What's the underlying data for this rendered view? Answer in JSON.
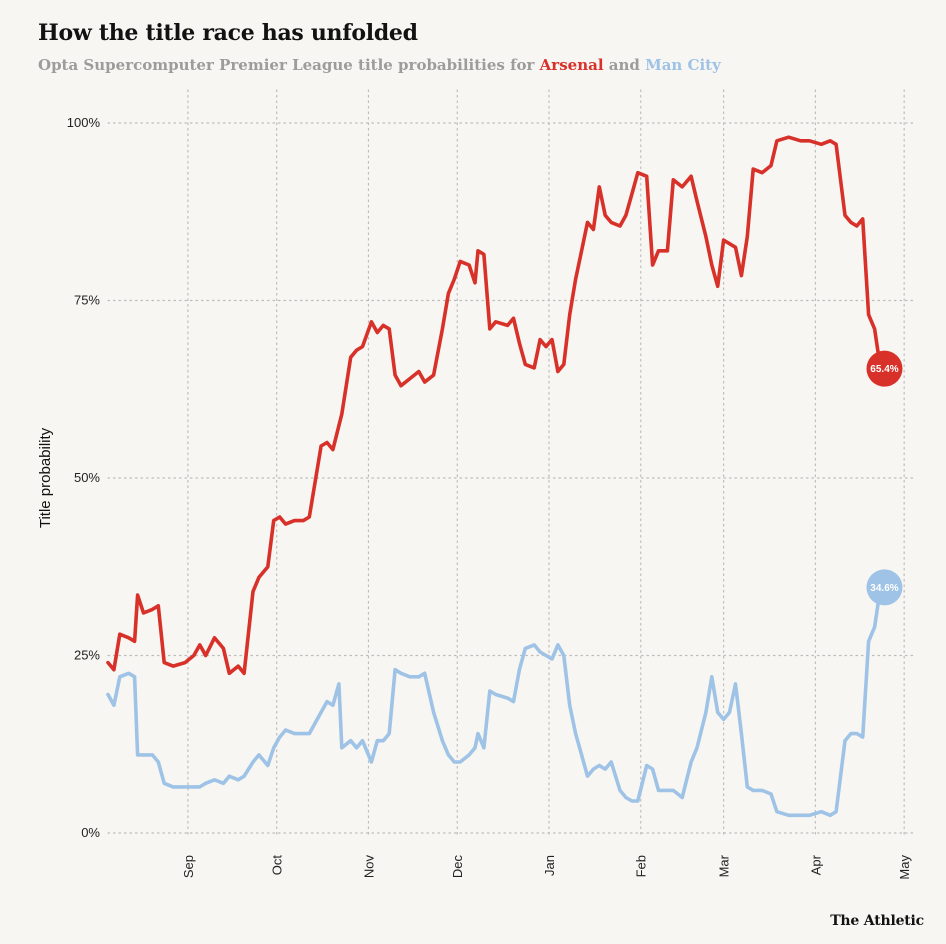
{
  "title": "How the title race has unfolded",
  "subtitle": {
    "prefix": "Opta Supercomputer Premier League title probabilities for ",
    "team1": "Arsenal",
    "joiner": " and ",
    "team2": "Man City"
  },
  "credit": "The Athletic",
  "colors": {
    "arsenal": "#d8312a",
    "mancity": "#9ec3e6",
    "grid": "#bdbdbd",
    "background": "#f7f6f2"
  },
  "chart_data": {
    "type": "line",
    "title": "How the title race has unfolded",
    "ylabel": "Title probability",
    "xlabel": "",
    "ylim": [
      0,
      100
    ],
    "yticks": [
      {
        "value": 0,
        "label": "0%"
      },
      {
        "value": 25,
        "label": "25%"
      },
      {
        "value": 50,
        "label": "50%"
      },
      {
        "value": 75,
        "label": "75%"
      },
      {
        "value": 100,
        "label": "100%"
      }
    ],
    "x_axis": "date (2022-23 season)",
    "xlim": [
      "2022-08-05",
      "2023-05-05"
    ],
    "xticks": [
      {
        "date": "2022-09-01",
        "label": "Sep"
      },
      {
        "date": "2022-10-01",
        "label": "Oct"
      },
      {
        "date": "2022-11-01",
        "label": "Nov"
      },
      {
        "date": "2022-12-01",
        "label": "Dec"
      },
      {
        "date": "2023-01-01",
        "label": "Jan"
      },
      {
        "date": "2023-02-01",
        "label": "Feb"
      },
      {
        "date": "2023-03-01",
        "label": "Mar"
      },
      {
        "date": "2023-04-01",
        "label": "Apr"
      },
      {
        "date": "2023-05-01",
        "label": "May"
      }
    ],
    "grid": true,
    "series": [
      {
        "name": "Arsenal",
        "end_label": "65.4%",
        "end_value": 65.4,
        "points": [
          [
            "2022-08-05",
            24
          ],
          [
            "2022-08-07",
            23
          ],
          [
            "2022-08-09",
            28
          ],
          [
            "2022-08-12",
            27.5
          ],
          [
            "2022-08-14",
            27
          ],
          [
            "2022-08-15",
            33.5
          ],
          [
            "2022-08-17",
            31
          ],
          [
            "2022-08-20",
            31.5
          ],
          [
            "2022-08-22",
            32
          ],
          [
            "2022-08-24",
            24
          ],
          [
            "2022-08-27",
            23.5
          ],
          [
            "2022-08-31",
            24
          ],
          [
            "2022-09-03",
            25
          ],
          [
            "2022-09-05",
            26.5
          ],
          [
            "2022-09-07",
            25
          ],
          [
            "2022-09-10",
            27.5
          ],
          [
            "2022-09-13",
            26
          ],
          [
            "2022-09-15",
            22.5
          ],
          [
            "2022-09-18",
            23.5
          ],
          [
            "2022-09-20",
            22.5
          ],
          [
            "2022-09-23",
            34
          ],
          [
            "2022-09-25",
            36
          ],
          [
            "2022-09-28",
            37.5
          ],
          [
            "2022-09-30",
            44
          ],
          [
            "2022-10-02",
            44.5
          ],
          [
            "2022-10-04",
            43.5
          ],
          [
            "2022-10-07",
            44
          ],
          [
            "2022-10-10",
            44
          ],
          [
            "2022-10-12",
            44.5
          ],
          [
            "2022-10-16",
            54.5
          ],
          [
            "2022-10-18",
            55
          ],
          [
            "2022-10-20",
            54
          ],
          [
            "2022-10-23",
            59
          ],
          [
            "2022-10-26",
            67
          ],
          [
            "2022-10-28",
            68
          ],
          [
            "2022-10-30",
            68.5
          ],
          [
            "2022-11-02",
            72
          ],
          [
            "2022-11-04",
            70.5
          ],
          [
            "2022-11-06",
            71.5
          ],
          [
            "2022-11-08",
            71
          ],
          [
            "2022-11-10",
            64.5
          ],
          [
            "2022-11-12",
            63
          ],
          [
            "2022-11-15",
            64
          ],
          [
            "2022-11-18",
            65
          ],
          [
            "2022-11-20",
            63.5
          ],
          [
            "2022-11-23",
            64.5
          ],
          [
            "2022-11-26",
            71
          ],
          [
            "2022-11-28",
            76
          ],
          [
            "2022-11-30",
            78
          ],
          [
            "2022-12-02",
            80.5
          ],
          [
            "2022-12-05",
            80
          ],
          [
            "2022-12-07",
            77.5
          ],
          [
            "2022-12-08",
            82
          ],
          [
            "2022-12-10",
            81.5
          ],
          [
            "2022-12-12",
            71
          ],
          [
            "2022-12-14",
            72
          ],
          [
            "2022-12-18",
            71.5
          ],
          [
            "2022-12-20",
            72.5
          ],
          [
            "2022-12-22",
            69
          ],
          [
            "2022-12-24",
            66
          ],
          [
            "2022-12-27",
            65.5
          ],
          [
            "2022-12-29",
            69.5
          ],
          [
            "2022-12-31",
            68.5
          ],
          [
            "2023-01-02",
            69.5
          ],
          [
            "2023-01-04",
            65
          ],
          [
            "2023-01-06",
            66
          ],
          [
            "2023-01-08",
            73
          ],
          [
            "2023-01-10",
            78
          ],
          [
            "2023-01-12",
            82
          ],
          [
            "2023-01-14",
            86
          ],
          [
            "2023-01-16",
            85
          ],
          [
            "2023-01-18",
            91
          ],
          [
            "2023-01-20",
            87
          ],
          [
            "2023-01-22",
            86
          ],
          [
            "2023-01-25",
            85.5
          ],
          [
            "2023-01-27",
            87
          ],
          [
            "2023-01-29",
            90
          ],
          [
            "2023-01-31",
            93
          ],
          [
            "2023-02-03",
            92.5
          ],
          [
            "2023-02-05",
            80
          ],
          [
            "2023-02-07",
            82
          ],
          [
            "2023-02-10",
            82
          ],
          [
            "2023-02-12",
            92
          ],
          [
            "2023-02-15",
            91
          ],
          [
            "2023-02-18",
            92.5
          ],
          [
            "2023-02-20",
            89
          ],
          [
            "2023-02-23",
            84
          ],
          [
            "2023-02-25",
            80
          ],
          [
            "2023-02-27",
            77
          ],
          [
            "2023-03-01",
            83.5
          ],
          [
            "2023-03-03",
            83
          ],
          [
            "2023-03-05",
            82.5
          ],
          [
            "2023-03-07",
            78.5
          ],
          [
            "2023-03-09",
            84
          ],
          [
            "2023-03-11",
            93.5
          ],
          [
            "2023-03-14",
            93
          ],
          [
            "2023-03-17",
            94
          ],
          [
            "2023-03-19",
            97.5
          ],
          [
            "2023-03-23",
            98
          ],
          [
            "2023-03-27",
            97.5
          ],
          [
            "2023-03-30",
            97.5
          ],
          [
            "2023-04-03",
            97
          ],
          [
            "2023-04-06",
            97.5
          ],
          [
            "2023-04-08",
            97
          ],
          [
            "2023-04-11",
            87
          ],
          [
            "2023-04-13",
            86
          ],
          [
            "2023-04-15",
            85.5
          ],
          [
            "2023-04-17",
            86.5
          ],
          [
            "2023-04-19",
            73
          ],
          [
            "2023-04-21",
            71
          ],
          [
            "2023-04-23",
            65.4
          ]
        ]
      },
      {
        "name": "Man City",
        "end_label": "34.6%",
        "end_value": 34.6,
        "points": [
          [
            "2022-08-05",
            19.5
          ],
          [
            "2022-08-07",
            18
          ],
          [
            "2022-08-09",
            22
          ],
          [
            "2022-08-12",
            22.5
          ],
          [
            "2022-08-14",
            22
          ],
          [
            "2022-08-15",
            11
          ],
          [
            "2022-08-17",
            11
          ],
          [
            "2022-08-20",
            11
          ],
          [
            "2022-08-22",
            10
          ],
          [
            "2022-08-24",
            7
          ],
          [
            "2022-08-27",
            6.5
          ],
          [
            "2022-08-31",
            6.5
          ],
          [
            "2022-09-03",
            6.5
          ],
          [
            "2022-09-05",
            6.5
          ],
          [
            "2022-09-07",
            7
          ],
          [
            "2022-09-10",
            7.5
          ],
          [
            "2022-09-13",
            7
          ],
          [
            "2022-09-15",
            8
          ],
          [
            "2022-09-18",
            7.5
          ],
          [
            "2022-09-20",
            8
          ],
          [
            "2022-09-23",
            10
          ],
          [
            "2022-09-25",
            11
          ],
          [
            "2022-09-28",
            9.5
          ],
          [
            "2022-09-30",
            12
          ],
          [
            "2022-10-02",
            13.5
          ],
          [
            "2022-10-04",
            14.5
          ],
          [
            "2022-10-07",
            14
          ],
          [
            "2022-10-10",
            14
          ],
          [
            "2022-10-12",
            14
          ],
          [
            "2022-10-16",
            17
          ],
          [
            "2022-10-18",
            18.5
          ],
          [
            "2022-10-20",
            18
          ],
          [
            "2022-10-22",
            21
          ],
          [
            "2022-10-23",
            12
          ],
          [
            "2022-10-26",
            13
          ],
          [
            "2022-10-28",
            12
          ],
          [
            "2022-10-30",
            13
          ],
          [
            "2022-11-02",
            10
          ],
          [
            "2022-11-04",
            13
          ],
          [
            "2022-11-06",
            13
          ],
          [
            "2022-11-08",
            14
          ],
          [
            "2022-11-10",
            23
          ],
          [
            "2022-11-12",
            22.5
          ],
          [
            "2022-11-15",
            22
          ],
          [
            "2022-11-18",
            22
          ],
          [
            "2022-11-20",
            22.5
          ],
          [
            "2022-11-23",
            17
          ],
          [
            "2022-11-26",
            13
          ],
          [
            "2022-11-28",
            11
          ],
          [
            "2022-11-30",
            10
          ],
          [
            "2022-12-02",
            10
          ],
          [
            "2022-12-05",
            11
          ],
          [
            "2022-12-07",
            12
          ],
          [
            "2022-12-08",
            14
          ],
          [
            "2022-12-10",
            12
          ],
          [
            "2022-12-12",
            20
          ],
          [
            "2022-12-14",
            19.5
          ],
          [
            "2022-12-18",
            19
          ],
          [
            "2022-12-20",
            18.5
          ],
          [
            "2022-12-22",
            23
          ],
          [
            "2022-12-24",
            26
          ],
          [
            "2022-12-27",
            26.5
          ],
          [
            "2022-12-29",
            25.5
          ],
          [
            "2022-12-31",
            25
          ],
          [
            "2023-01-02",
            24.5
          ],
          [
            "2023-01-04",
            26.5
          ],
          [
            "2023-01-06",
            25
          ],
          [
            "2023-01-08",
            18
          ],
          [
            "2023-01-10",
            14
          ],
          [
            "2023-01-12",
            11
          ],
          [
            "2023-01-14",
            8
          ],
          [
            "2023-01-16",
            9
          ],
          [
            "2023-01-18",
            9.5
          ],
          [
            "2023-01-20",
            9
          ],
          [
            "2023-01-22",
            10
          ],
          [
            "2023-01-25",
            6
          ],
          [
            "2023-01-27",
            5
          ],
          [
            "2023-01-29",
            4.5
          ],
          [
            "2023-01-31",
            4.5
          ],
          [
            "2023-02-03",
            9.5
          ],
          [
            "2023-02-05",
            9
          ],
          [
            "2023-02-07",
            6
          ],
          [
            "2023-02-10",
            6
          ],
          [
            "2023-02-12",
            6
          ],
          [
            "2023-02-15",
            5
          ],
          [
            "2023-02-18",
            10
          ],
          [
            "2023-02-20",
            12
          ],
          [
            "2023-02-23",
            17
          ],
          [
            "2023-02-25",
            22
          ],
          [
            "2023-02-27",
            17
          ],
          [
            "2023-03-01",
            16
          ],
          [
            "2023-03-03",
            17
          ],
          [
            "2023-03-05",
            21
          ],
          [
            "2023-03-07",
            14
          ],
          [
            "2023-03-09",
            6.5
          ],
          [
            "2023-03-11",
            6
          ],
          [
            "2023-03-14",
            6
          ],
          [
            "2023-03-17",
            5.5
          ],
          [
            "2023-03-19",
            3
          ],
          [
            "2023-03-23",
            2.5
          ],
          [
            "2023-03-27",
            2.5
          ],
          [
            "2023-03-30",
            2.5
          ],
          [
            "2023-04-03",
            3
          ],
          [
            "2023-04-06",
            2.5
          ],
          [
            "2023-04-08",
            3
          ],
          [
            "2023-04-11",
            13
          ],
          [
            "2023-04-13",
            14
          ],
          [
            "2023-04-15",
            14
          ],
          [
            "2023-04-17",
            13.5
          ],
          [
            "2023-04-19",
            27
          ],
          [
            "2023-04-21",
            29
          ],
          [
            "2023-04-23",
            34.6
          ]
        ]
      }
    ]
  }
}
